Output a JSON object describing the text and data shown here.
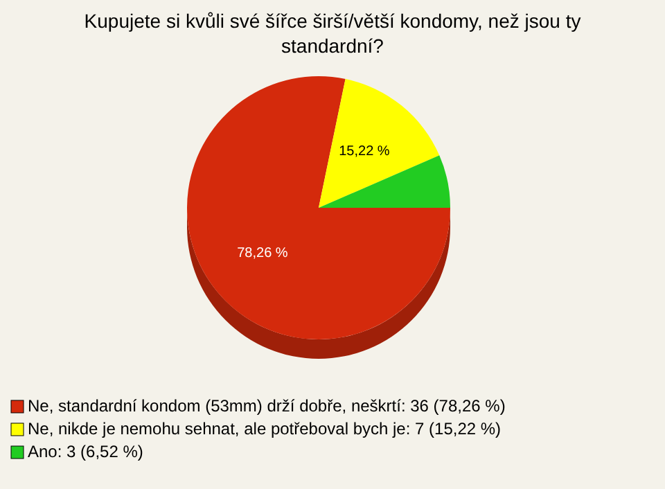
{
  "chart_data": {
    "type": "pie",
    "title": "Kupujete si kvůli své šířce širší/větší kondomy, než jsou ty standardní?",
    "categories": [
      "Ne, standardní kondom (53mm) drží dobře, neškrtí: 36 (78,26 %)",
      "Ne, nikde je nemohu sehnat, ale potřeboval bych je: 7 (15,22 %)",
      "Ano: 3 (6,52 %)"
    ],
    "values": [
      78.26,
      15.22,
      6.52
    ],
    "colors": [
      "#d42a0c",
      "#ffff00",
      "#22cc22"
    ],
    "value_labels": [
      "78,26 %",
      "15,22 %",
      null
    ],
    "legend": "bottom"
  }
}
